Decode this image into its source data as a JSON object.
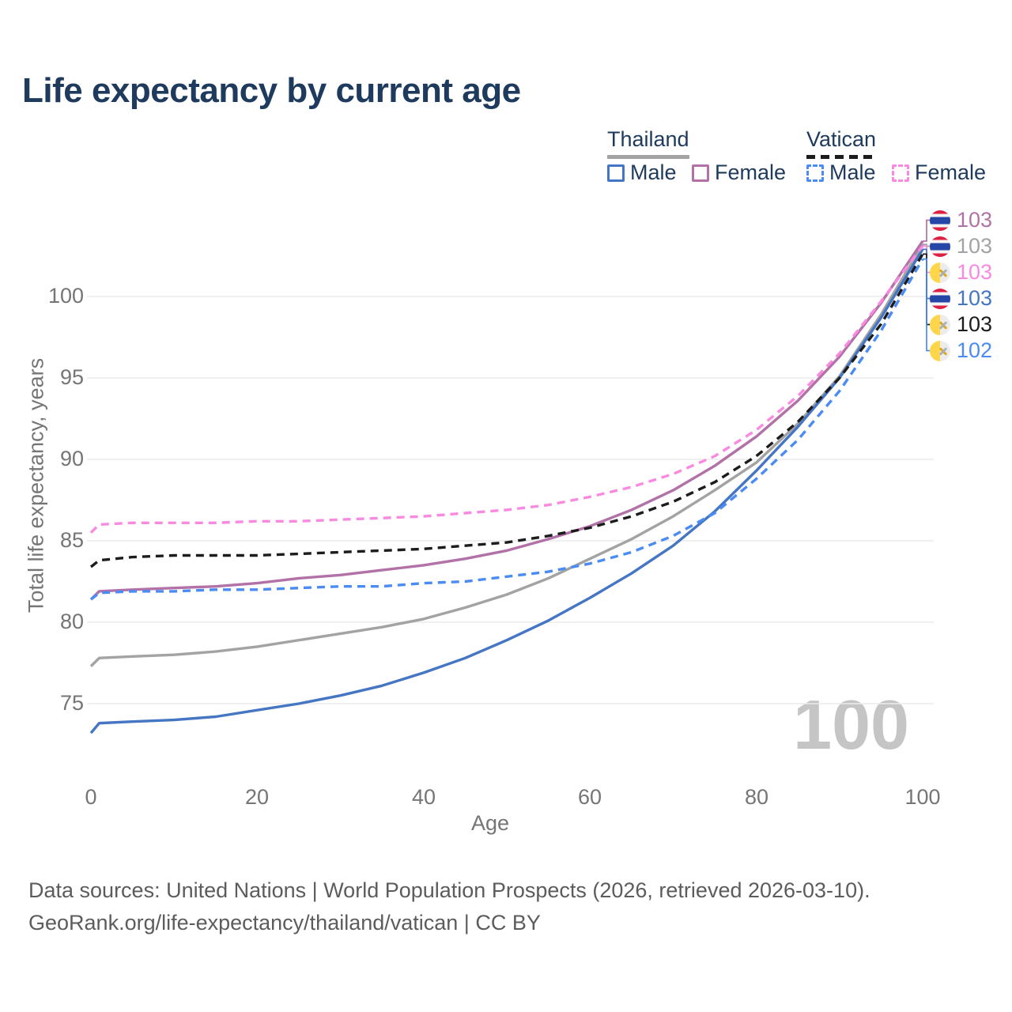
{
  "title": "Life expectancy by current age",
  "legend": {
    "groups": [
      {
        "label": "Thailand",
        "line_style": "solid"
      },
      {
        "label": "Vatican",
        "line_style": "dashed"
      }
    ],
    "items": [
      {
        "label": "Male",
        "series": 1
      },
      {
        "label": "Female",
        "series": 2
      },
      {
        "label": "Male",
        "series": 4
      },
      {
        "label": "Female",
        "series": 5
      }
    ]
  },
  "chart_data": {
    "type": "line",
    "title": "Life expectancy by current age",
    "xlabel": "Age",
    "ylabel": "Total life expectancy, years",
    "xlim": [
      0,
      100
    ],
    "ylim": [
      72.5,
      104
    ],
    "x_ticks": [
      0,
      20,
      40,
      60,
      80,
      100
    ],
    "y_ticks": [
      75,
      80,
      85,
      90,
      95,
      100
    ],
    "grid": "horizontal",
    "legend_position": "top-right",
    "ages": [
      0,
      1,
      5,
      10,
      15,
      20,
      25,
      30,
      35,
      40,
      45,
      50,
      55,
      60,
      65,
      70,
      75,
      80,
      85,
      90,
      95,
      100
    ],
    "series": [
      {
        "name": "Thailand",
        "country": "Thailand",
        "sex": "Both",
        "color": "#a3a3a3",
        "dash": null,
        "values": [
          77.3,
          77.8,
          77.9,
          78.0,
          78.2,
          78.5,
          78.9,
          79.3,
          79.7,
          80.2,
          80.9,
          81.7,
          82.7,
          83.9,
          85.1,
          86.5,
          88.1,
          89.8,
          92.2,
          95.1,
          98.9,
          103.2
        ]
      },
      {
        "name": "Thailand Male",
        "country": "Thailand",
        "sex": "Male",
        "color": "#4576c4",
        "dash": null,
        "values": [
          73.2,
          73.8,
          73.9,
          74.0,
          74.2,
          74.6,
          75.0,
          75.5,
          76.1,
          76.9,
          77.8,
          78.9,
          80.1,
          81.5,
          83.0,
          84.7,
          86.8,
          89.3,
          92.0,
          95.0,
          98.7,
          102.9
        ]
      },
      {
        "name": "Thailand Female",
        "country": "Thailand",
        "sex": "Female",
        "color": "#b272a8",
        "dash": null,
        "values": [
          81.4,
          81.9,
          82.0,
          82.1,
          82.2,
          82.4,
          82.7,
          82.9,
          83.2,
          83.5,
          83.9,
          84.4,
          85.1,
          85.9,
          86.9,
          88.1,
          89.6,
          91.4,
          93.6,
          96.3,
          99.6,
          103.4
        ]
      },
      {
        "name": "Vatican",
        "country": "Vatican",
        "sex": "Both",
        "color": "#1c1c1c",
        "dash": "10 7",
        "values": [
          83.4,
          83.8,
          84.0,
          84.1,
          84.1,
          84.1,
          84.2,
          84.3,
          84.4,
          84.5,
          84.7,
          84.9,
          85.3,
          85.8,
          86.5,
          87.4,
          88.6,
          90.2,
          92.3,
          95.0,
          98.3,
          102.6
        ]
      },
      {
        "name": "Vatican Male",
        "country": "Vatican",
        "sex": "Male",
        "color": "#4b8bf4",
        "dash": "10 7",
        "values": [
          81.4,
          81.8,
          81.9,
          81.9,
          82.0,
          82.0,
          82.1,
          82.2,
          82.2,
          82.4,
          82.5,
          82.8,
          83.1,
          83.6,
          84.3,
          85.3,
          86.7,
          88.8,
          91.2,
          94.2,
          97.9,
          102.3
        ]
      },
      {
        "name": "Vatican Female",
        "country": "Vatican",
        "sex": "Female",
        "color": "#f98ae0",
        "dash": "10 7",
        "values": [
          85.5,
          86.0,
          86.1,
          86.1,
          86.1,
          86.2,
          86.2,
          86.3,
          86.4,
          86.5,
          86.7,
          86.9,
          87.2,
          87.7,
          88.3,
          89.1,
          90.2,
          91.8,
          93.9,
          96.5,
          99.7,
          103.1
        ]
      }
    ],
    "endpoint_labels": [
      {
        "series": 2,
        "flag": "thailand",
        "value": "103"
      },
      {
        "series": 0,
        "flag": "thailand",
        "value": "103"
      },
      {
        "series": 5,
        "flag": "vatican",
        "value": "103"
      },
      {
        "series": 1,
        "flag": "thailand",
        "value": "103"
      },
      {
        "series": 3,
        "flag": "vatican",
        "value": "103"
      },
      {
        "series": 4,
        "flag": "vatican",
        "value": "102"
      }
    ],
    "watermark": "100"
  },
  "footer": {
    "line1": "Data sources: United Nations | World Population Prospects (2026, retrieved 2026-03-10).",
    "line2": "GeoRank.org/life-expectancy/thailand/vatican | CC BY"
  }
}
